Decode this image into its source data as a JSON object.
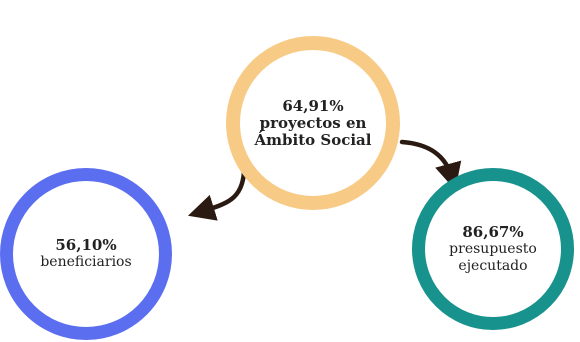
{
  "nodes": {
    "top": {
      "value": "64,91%",
      "label_line1": "proyectos en",
      "label_line2": "Ámbito Social",
      "color": "#f7cb86"
    },
    "left": {
      "value": "56,10%",
      "label_line1": "beneficiarios",
      "color": "#5b6ef0"
    },
    "right": {
      "value": "86,67%",
      "label_line1": "presupuesto",
      "label_line2": "ejecutado",
      "color": "#17928c"
    }
  },
  "arrow_color": "#2b1a12"
}
